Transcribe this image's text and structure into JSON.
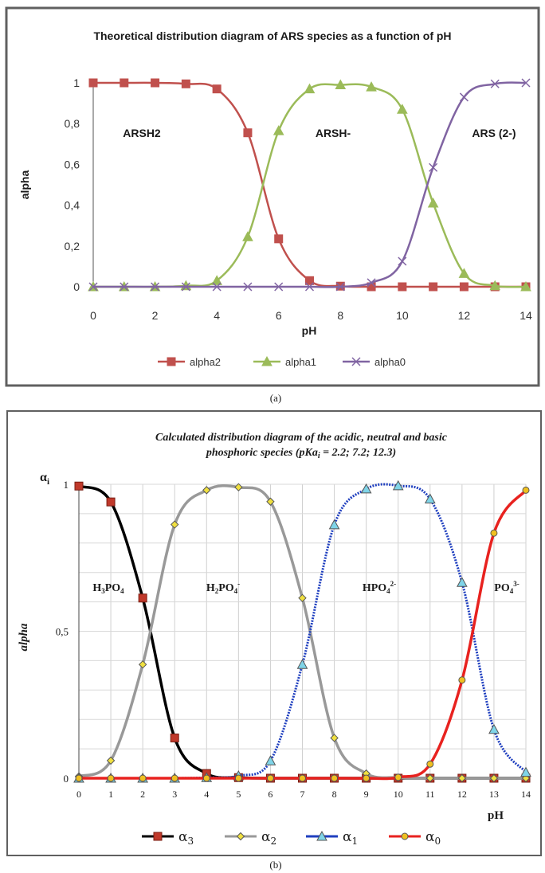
{
  "chart_data": [
    {
      "type": "line",
      "title": "Theoretical distribution diagram of ARS species as a function of pH",
      "xlabel": "pH",
      "ylabel": "alpha",
      "xlim": [
        0,
        14
      ],
      "ylim": [
        0,
        1
      ],
      "x_ticks": [
        "0",
        "2",
        "4",
        "6",
        "8",
        "10",
        "12",
        "14"
      ],
      "y_ticks": [
        "0",
        "0,2",
        "0,4",
        "0,6",
        "0,8",
        "1"
      ],
      "grid": false,
      "legend_position": "bottom",
      "annotations": [
        "ARSH2",
        "ARSH-",
        "ARS (2-)"
      ],
      "caption": "(a)",
      "x": [
        0,
        1,
        2,
        3,
        4,
        5,
        6,
        7,
        8,
        9,
        10,
        11,
        12,
        13,
        14
      ],
      "series": [
        {
          "name": "alpha2",
          "color": "#c0504d",
          "marker": "square",
          "values": [
            1,
            1,
            1,
            0.995,
            0.97,
            0.755,
            0.235,
            0.03,
            0.003,
            0,
            0,
            0,
            0,
            0,
            0
          ]
        },
        {
          "name": "alpha1",
          "color": "#9bbb59",
          "marker": "triangle",
          "values": [
            0,
            0,
            0,
            0.005,
            0.03,
            0.245,
            0.765,
            0.97,
            0.99,
            0.98,
            0.87,
            0.41,
            0.065,
            0.005,
            0
          ]
        },
        {
          "name": "alpha0",
          "color": "#8064a2",
          "marker": "x",
          "values": [
            0,
            0,
            0,
            0,
            0,
            0,
            0,
            0,
            0,
            0.02,
            0.125,
            0.585,
            0.93,
            0.995,
            1
          ]
        }
      ]
    },
    {
      "type": "line",
      "title_line1": "Calculated distribution diagram of the acidic, neutral and basic",
      "title_line2": "phosphoric species (pKai = 2.2; 7.2; 12.3)",
      "xlabel": "pH",
      "ylabel": "alpha",
      "corner_label": "αi",
      "xlim": [
        0,
        14
      ],
      "ylim": [
        0,
        1
      ],
      "x_ticks": [
        "0",
        "1",
        "2",
        "3",
        "4",
        "5",
        "6",
        "7",
        "8",
        "9",
        "10",
        "11",
        "12",
        "13",
        "14"
      ],
      "y_ticks": [
        "0",
        "0,5",
        "1"
      ],
      "grid": true,
      "legend_position": "bottom",
      "annotations": [
        "H3PO4",
        "H2PO4-",
        "HPO42-",
        "PO43-"
      ],
      "caption": "(b)",
      "x": [
        0,
        1,
        2,
        3,
        4,
        5,
        6,
        7,
        8,
        9,
        10,
        11,
        12,
        13,
        14
      ],
      "series": [
        {
          "name": "α3",
          "color": "#000000",
          "marker": "square",
          "marker_color": "#c0392b",
          "values": [
            0.994,
            0.94,
            0.613,
            0.137,
            0.016,
            0.002,
            0,
            0,
            0,
            0,
            0,
            0,
            0,
            0,
            0
          ]
        },
        {
          "name": "α2",
          "color": "#999999",
          "marker": "diamond",
          "marker_color": "#f0e040",
          "values": [
            0.006,
            0.06,
            0.387,
            0.863,
            0.98,
            0.99,
            0.941,
            0.613,
            0.137,
            0.016,
            0.002,
            0,
            0,
            0,
            0
          ]
        },
        {
          "name": "α1",
          "color": "#1f3fbf",
          "marker": "triangle",
          "marker_color": "#7fd4e8",
          "values": [
            0,
            0,
            0,
            0,
            0.002,
            0.008,
            0.059,
            0.387,
            0.862,
            0.984,
            0.995,
            0.95,
            0.666,
            0.166,
            0.02
          ]
        },
        {
          "name": "α0",
          "color": "#e8221f",
          "marker": "circle",
          "marker_color": "#f0c020",
          "values": [
            0,
            0,
            0,
            0,
            0,
            0,
            0,
            0,
            0,
            0,
            0.003,
            0.048,
            0.334,
            0.834,
            0.98
          ]
        }
      ]
    }
  ]
}
